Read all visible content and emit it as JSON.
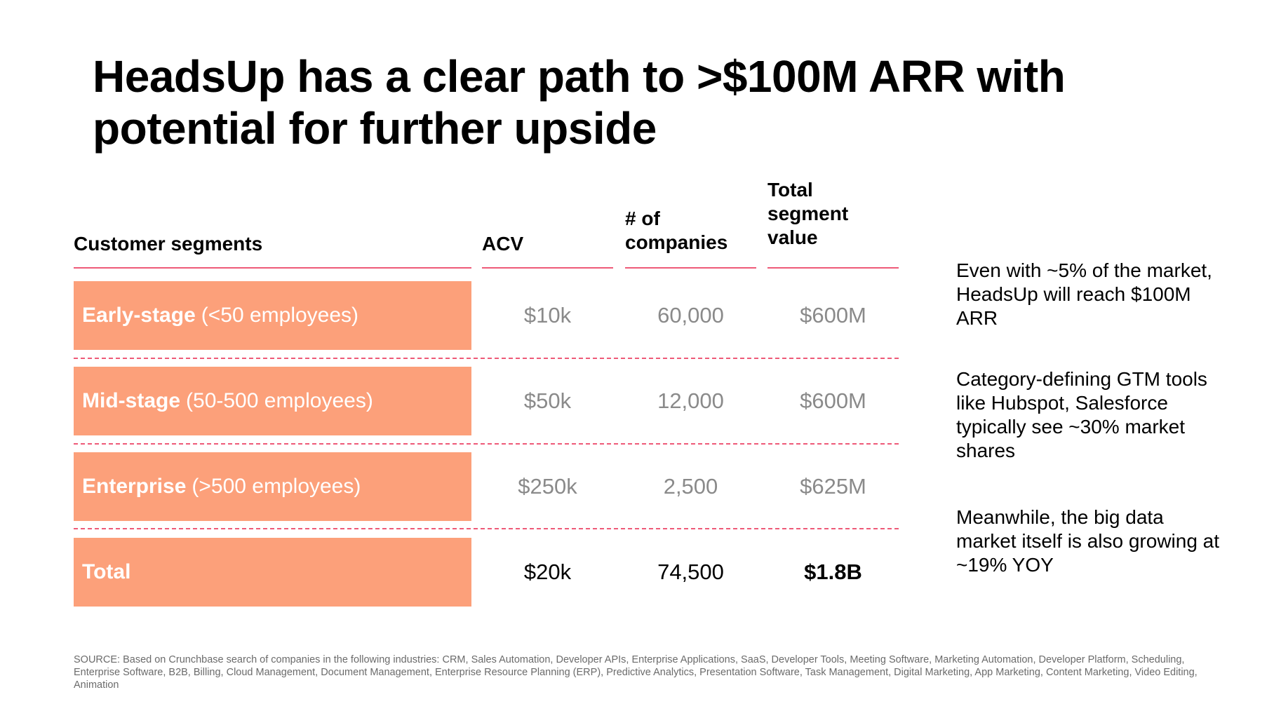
{
  "title": "HeadsUp has a clear path to >$100M ARR with potential for further upside",
  "table": {
    "headers": {
      "segment": "Customer segments",
      "acv": "ACV",
      "companies": "# of companies",
      "total": "Total segment value"
    },
    "rows": [
      {
        "label": "Early-stage",
        "detail": "(<50 employees)",
        "acv": "$10k",
        "companies": "60,000",
        "total": "$600M"
      },
      {
        "label": "Mid-stage",
        "detail": "(50-500 employees)",
        "acv": "$50k",
        "companies": "12,000",
        "total": "$600M"
      },
      {
        "label": "Enterprise",
        "detail": "(>500 employees)",
        "acv": "$250k",
        "companies": "2,500",
        "total": "$625M"
      },
      {
        "label": "Total",
        "detail": "",
        "acv": "$20k",
        "companies": "74,500",
        "total": "$1.8B"
      }
    ]
  },
  "notes": [
    "Even with ~5% of the market, HeadsUp will reach $100M ARR",
    "Category-defining GTM tools like Hubspot, Salesforce typically see ~30% market shares",
    "Meanwhile, the big data market itself is also growing at ~19% YOY"
  ],
  "source": "SOURCE: Based on Crunchbase search of companies in the following industries: CRM, Sales Automation, Developer APIs, Enterprise Applications, SaaS, Developer Tools, Meeting Software, Marketing Automation, Developer Platform, Scheduling, Enterprise Software, B2B, Billing, Cloud Management, Document Management, Enterprise Resource Planning (ERP), Predictive Analytics, Presentation Software, Task Management, Digital Marketing, App Marketing, Content Marketing, Video Editing, Animation",
  "colors": {
    "accent_line": "#ee5a78",
    "segment_fill": "#fca07a",
    "muted_value": "#8a8a8a"
  }
}
